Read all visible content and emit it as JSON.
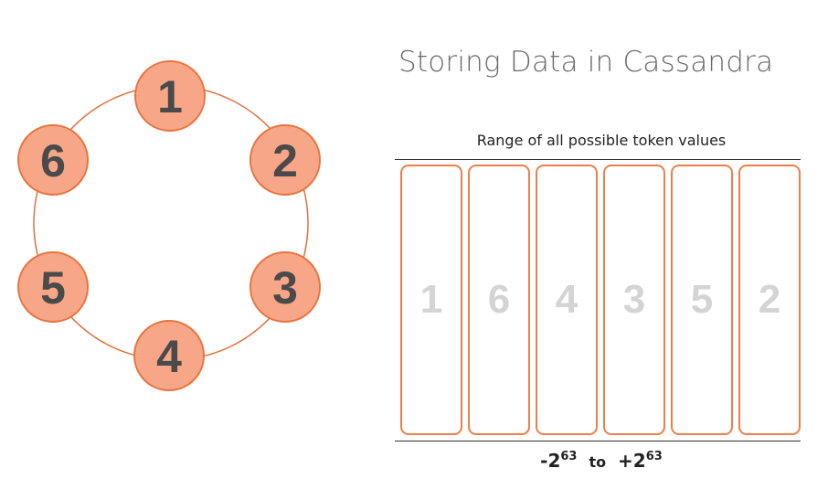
{
  "title": "Storing Data in Cassandra",
  "ring": {
    "nodes": [
      "1",
      "2",
      "3",
      "4",
      "5",
      "6"
    ]
  },
  "token_range": {
    "label": "Range of all possible token values",
    "partitions": [
      "1",
      "6",
      "4",
      "3",
      "5",
      "2"
    ],
    "min_base": "-2",
    "min_exp": "63",
    "to": "to",
    "max_base": "+2",
    "max_exp": "63"
  },
  "colors": {
    "node_fill": "#f7a787",
    "node_stroke": "#e8743f",
    "ring_stroke": "#e0733f",
    "partition_border": "#ec7f4b",
    "partition_text": "#d4d4d4"
  }
}
